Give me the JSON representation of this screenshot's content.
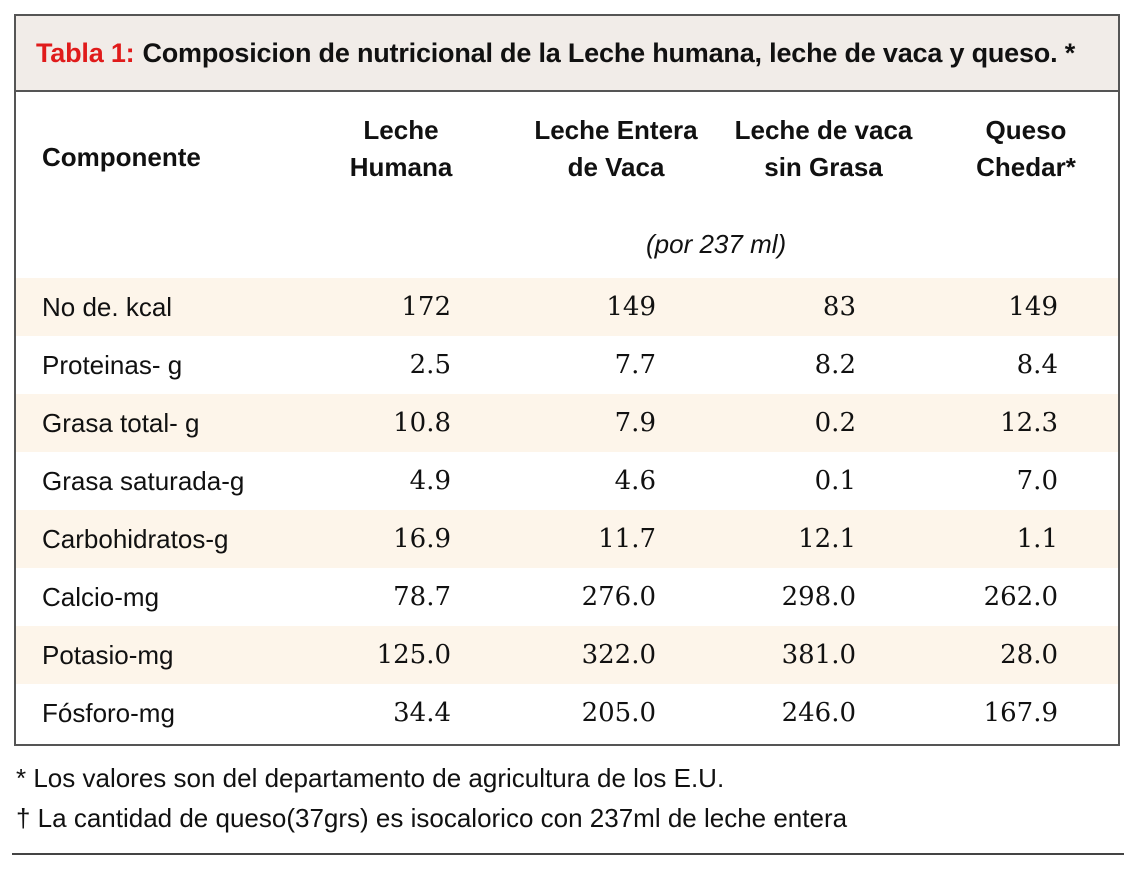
{
  "table": {
    "title_label": "Tabla 1:",
    "title_text": "Composicion de nutricional de la Leche humana, leche de vaca y queso. *",
    "columns": {
      "componente": "Componente",
      "humana": "Leche\nHumana",
      "entera": "Leche Entera\nde Vaca",
      "sin_grasa": "Leche de vaca\nsin Grasa",
      "queso": "Queso\nChedar*"
    },
    "unit_note": "(por 237 ml)",
    "rows": [
      {
        "label": "No de. kcal",
        "values": [
          "172",
          "149",
          "83",
          "149"
        ]
      },
      {
        "label": "Proteinas- g",
        "values": [
          "2.5",
          "7.7",
          "8.2",
          "8.4"
        ]
      },
      {
        "label": "Grasa total- g",
        "values": [
          "10.8",
          "7.9",
          "0.2",
          "12.3"
        ]
      },
      {
        "label": "Grasa saturada-g",
        "values": [
          "4.9",
          "4.6",
          "0.1",
          "7.0"
        ]
      },
      {
        "label": "Carbohidratos-g",
        "values": [
          "16.9",
          "11.7",
          "12.1",
          "1.1"
        ]
      },
      {
        "label": "Calcio-mg",
        "values": [
          "78.7",
          "276.0",
          "298.0",
          "262.0"
        ]
      },
      {
        "label": "Potasio-mg",
        "values": [
          "125.0",
          "322.0",
          "381.0",
          "28.0"
        ]
      },
      {
        "label": "Fósforo-mg",
        "values": [
          "34.4",
          "205.0",
          "246.0",
          "167.9"
        ]
      }
    ]
  },
  "footnotes": {
    "note1": "* Los valores son del departamento de agricultura de los E.U.",
    "note2": "† La cantidad de queso(37grs) es isocalorico con 237ml de leche entera"
  },
  "colors": {
    "title_label": "#e01b1b",
    "title_bg": "#f1ece8",
    "row_shade": "#fdf5ea",
    "border": "#555555"
  }
}
